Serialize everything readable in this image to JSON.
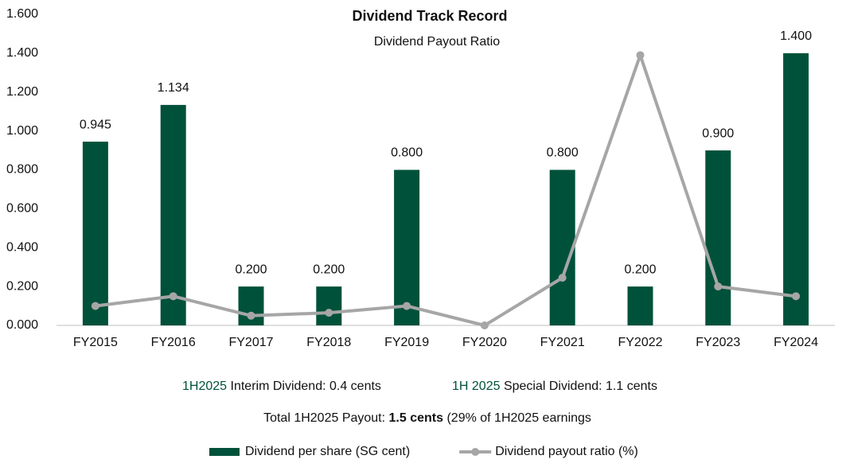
{
  "chart_data": {
    "type": "bar",
    "title": "Dividend Track Record",
    "subtitle": "Dividend Payout Ratio",
    "categories": [
      "FY2015",
      "FY2016",
      "FY2017",
      "FY2018",
      "FY2019",
      "FY2020",
      "FY2021",
      "FY2022",
      "FY2023",
      "FY2024"
    ],
    "series": [
      {
        "name": "Dividend per share (SG cent)",
        "type": "bar",
        "color": "#00513a",
        "values": [
          0.945,
          1.134,
          0.2,
          0.2,
          0.8,
          null,
          0.8,
          0.2,
          0.9,
          1.4
        ],
        "value_labels": [
          "0.945",
          "1.134",
          "0.200",
          "0.200",
          "0.800",
          null,
          "0.800",
          "0.200",
          "0.900",
          "1.400"
        ]
      },
      {
        "name": "Dividend payout ratio (%)",
        "type": "line",
        "color": "#a6a6a6",
        "values": [
          0.1,
          0.15,
          0.05,
          0.065,
          0.1,
          0,
          0.245,
          1.39,
          0.2,
          0.15
        ]
      }
    ],
    "ylim": [
      0,
      1.6
    ],
    "yticks": [
      {
        "value": 0,
        "label": "0.000"
      },
      {
        "value": 0.2,
        "label": "0.200"
      },
      {
        "value": 0.4,
        "label": "0.400"
      },
      {
        "value": 0.6,
        "label": "0.600"
      },
      {
        "value": 0.8,
        "label": "0.800"
      },
      {
        "value": 1.0,
        "label": "1.000"
      },
      {
        "value": 1.2,
        "label": "1.200"
      },
      {
        "value": 1.4,
        "label": "1.400"
      },
      {
        "value": 1.6,
        "label": "1.600"
      }
    ],
    "grid": false,
    "legend": "bottom",
    "annotations": {
      "interim_period": "1H2025",
      "interim_text": "Interim Dividend: 0.4 cents",
      "special_period": "1H 2025",
      "special_text": "Special Dividend: 1.1 cents",
      "total_text": "Total 1H2025 Payout:",
      "total_amount": "1.5 cents",
      "total_note": "(29% of 1H2025 earnings",
      "highlight_color": "#00513a"
    }
  }
}
